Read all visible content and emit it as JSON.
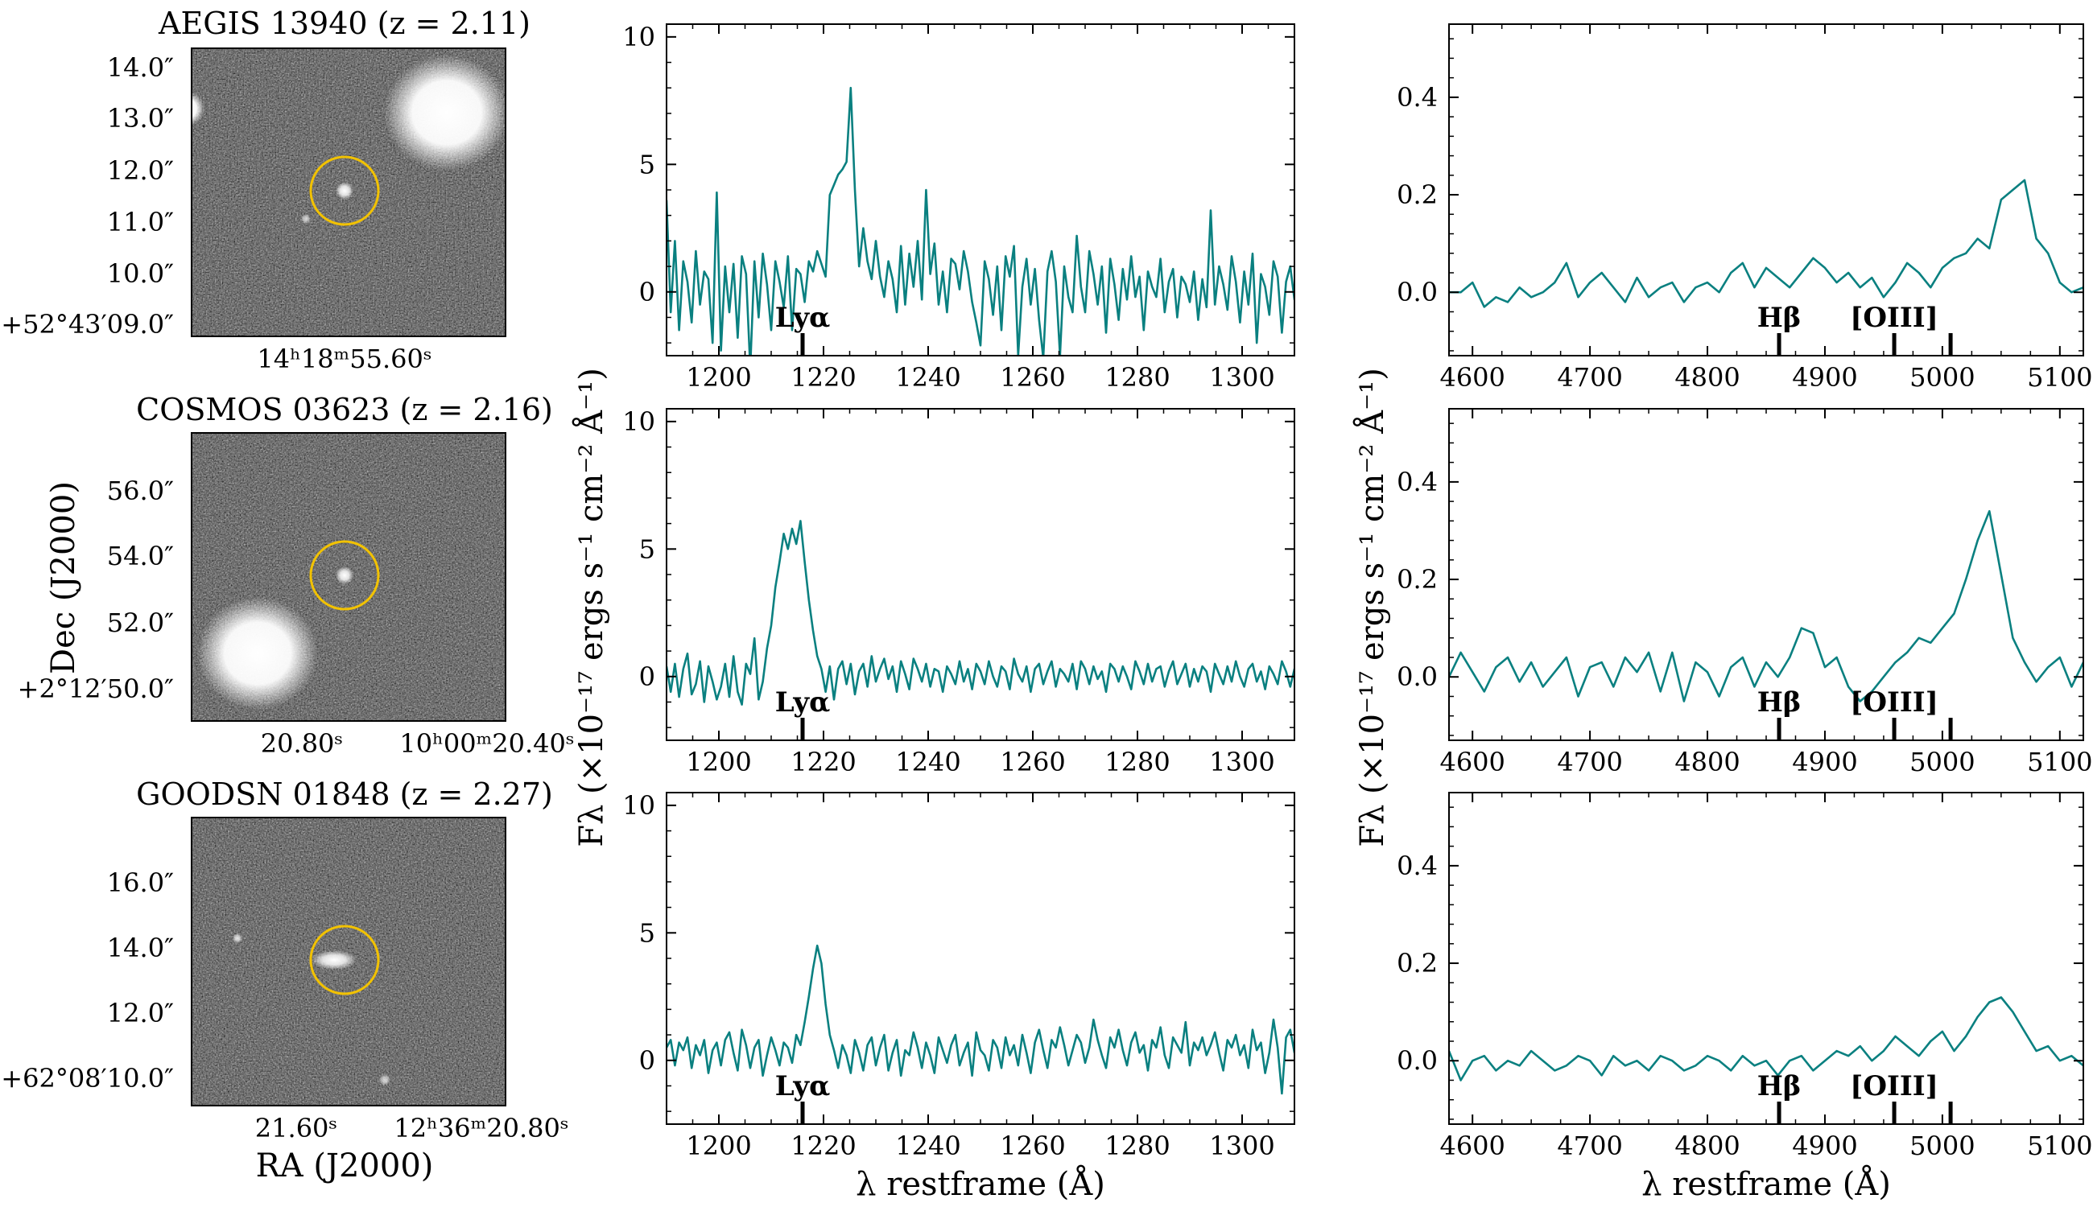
{
  "colors": {
    "spectrum": "#0a8080",
    "aperture": "#f2c200",
    "axis": "#000000"
  },
  "labels": {
    "cutout_xlabel": "RA (J2000)",
    "cutout_ylabel": "Dec (J2000)",
    "flux_ylabel": "Fλ (×10⁻¹⁷ ergs s⁻¹ cm⁻² Å⁻¹)",
    "uv_xlabel": "λ restframe (Å)",
    "opt_xlabel": "λ restframe (Å)"
  },
  "cutouts": [
    {
      "title": "AEGIS 13940 (z = 2.11)",
      "dec_ticks": [
        "14.0″",
        "13.0″",
        "12.0″",
        "11.0″",
        "10.0″",
        "+52°43′09.0″"
      ],
      "ra_ticks": [
        "14ʰ18ᵐ55.60ˢ"
      ]
    },
    {
      "title": "COSMOS 03623 (z = 2.16)",
      "dec_ticks": [
        "56.0″",
        "54.0″",
        "52.0″",
        "+2°12′50.0″"
      ],
      "ra_ticks": [
        "20.80ˢ",
        "10ʰ00ᵐ20.40ˢ"
      ]
    },
    {
      "title": "GOODSN 01848 (z = 2.27)",
      "dec_ticks": [
        "16.0″",
        "14.0″",
        "12.0″",
        "+62°08′10.0″"
      ],
      "ra_ticks": [
        "21.60ˢ",
        "12ʰ36ᵐ20.80ˢ"
      ]
    }
  ],
  "chart_data": [
    {
      "type": "line",
      "panel": "UV row 1",
      "xlabel": "",
      "ylabel": "",
      "xlim": [
        1190,
        1310
      ],
      "ylim": [
        -2.5,
        10.5
      ],
      "xticks": [
        1200,
        1220,
        1240,
        1260,
        1280,
        1300
      ],
      "yticks": [
        0,
        5,
        10
      ],
      "lines": [
        {
          "name": "Lyα",
          "x": 1216
        }
      ],
      "series": [
        {
          "name": "spectrum",
          "x0": 1190,
          "dx": 0.8,
          "values": [
            3.6,
            -0.8,
            2.0,
            -1.5,
            1.2,
            0.4,
            -1.2,
            1.6,
            -0.5,
            0.8,
            0.5,
            -2.0,
            3.9,
            -2.3,
            1.0,
            -0.8,
            1.1,
            -1.8,
            1.4,
            0.7,
            -3.0,
            1.2,
            -1.0,
            1.5,
            0.3,
            -1.5,
            1.2,
            0.4,
            -0.6,
            1.4,
            -1.5,
            0.9,
            0.7,
            -0.4,
            1.2,
            0.8,
            1.6,
            1.1,
            0.6,
            3.8,
            4.2,
            4.6,
            4.8,
            5.1,
            8.0,
            4.0,
            1.0,
            2.5,
            1.2,
            0.5,
            2.0,
            0.6,
            -0.2,
            1.2,
            0.5,
            -0.8,
            1.8,
            -0.5,
            1.5,
            0.2,
            2.0,
            -0.3,
            4.0,
            0.7,
            1.9,
            -0.5,
            0.8,
            -0.8,
            1.3,
            1.1,
            0.1,
            1.6,
            0.8,
            -0.4,
            -1.2,
            -2.1,
            1.2,
            0.5,
            -0.9,
            1.0,
            -1.5,
            1.4,
            0.6,
            1.8,
            -2.5,
            0.2,
            1.3,
            -0.5,
            0.9,
            -1.1,
            -2.6,
            0.8,
            1.6,
            0.4,
            -2.5,
            1.0,
            -0.2,
            -0.8,
            2.2,
            0.2,
            -0.8,
            1.6,
            0.7,
            -0.5,
            1.0,
            -1.6,
            1.3,
            0.3,
            -1.1,
            0.9,
            -0.3,
            1.4,
            -0.2,
            0.6,
            -1.5,
            0.8,
            0.2,
            -0.2,
            1.3,
            -0.8,
            0.4,
            0.9,
            -1.0,
            0.6,
            0.3,
            -0.4,
            0.8,
            -1.1,
            0.5,
            -0.6,
            3.2,
            -0.5,
            1.0,
            0.3,
            -0.7,
            1.4,
            0.4,
            -1.2,
            0.8,
            -0.5,
            1.5,
            -2.0,
            0.7,
            0.2,
            -0.9,
            1.2,
            0.6,
            -1.6,
            0.4,
            1.0,
            -0.3,
            1.6,
            -2.2,
            0.6,
            1.8,
            0.3,
            1.6,
            -0.2,
            2.4,
            1.1,
            2.1
          ]
        }
      ]
    },
    {
      "type": "line",
      "panel": "UV row 2",
      "xlabel": "",
      "ylabel": "",
      "xlim": [
        1190,
        1310
      ],
      "ylim": [
        -2.5,
        10.5
      ],
      "xticks": [
        1200,
        1220,
        1240,
        1260,
        1280,
        1300
      ],
      "yticks": [
        0,
        5,
        10
      ],
      "lines": [
        {
          "name": "Lyα",
          "x": 1216
        }
      ],
      "series": [
        {
          "name": "spectrum",
          "x0": 1190,
          "dx": 0.8,
          "values": [
            0.4,
            -0.6,
            0.5,
            -0.8,
            0.3,
            0.9,
            -0.7,
            -0.3,
            0.6,
            -1.0,
            0.4,
            -0.2,
            -0.9,
            -0.4,
            0.5,
            -0.8,
            0.8,
            -0.6,
            -1.1,
            0.5,
            0.1,
            1.5,
            -0.9,
            -0.2,
            1.1,
            2.0,
            3.5,
            4.5,
            5.6,
            5.0,
            5.8,
            5.2,
            6.1,
            4.5,
            3.0,
            1.8,
            0.8,
            0.3,
            -0.6,
            0.4,
            -0.9,
            0.3,
            0.6,
            -0.3,
            0.5,
            -0.7,
            0.2,
            0.5,
            -0.4,
            0.8,
            -0.2,
            0.3,
            0.7,
            -0.1,
            0.4,
            -0.6,
            0.6,
            0.1,
            -0.5,
            0.7,
            0.3,
            -0.2,
            0.5,
            -0.4,
            0.3,
            0.2,
            -0.6,
            0.4,
            0.1,
            -0.3,
            0.6,
            -0.2,
            0.3,
            -0.5,
            0.5,
            0.2,
            -0.3,
            0.6,
            0.0,
            -0.4,
            0.4,
            0.2,
            -0.5,
            0.7,
            0.1,
            -0.2,
            0.4,
            -0.6,
            0.3,
            0.5,
            -0.3,
            0.2,
            0.6,
            -0.4,
            0.3,
            0.1,
            -0.2,
            0.5,
            -0.5,
            0.6,
            0.3,
            -0.3,
            0.4,
            -0.1,
            0.2,
            -0.6,
            0.5,
            0.3,
            -0.2,
            0.4,
            0.0,
            -0.5,
            0.6,
            0.2,
            -0.3,
            0.5,
            -0.2,
            0.3,
            0.4,
            -0.4,
            0.2,
            0.6,
            -0.3,
            0.1,
            0.5,
            -0.4,
            0.3,
            -0.2,
            0.4,
            0.2,
            -0.6,
            0.5,
            0.1,
            -0.3,
            0.4,
            -0.2,
            0.6,
            0.0,
            -0.4,
            0.3,
            0.5,
            -0.2,
            0.2,
            -0.5,
            0.4,
            0.1,
            -0.3,
            0.6,
            0.2,
            -0.4,
            0.3,
            0.0,
            -0.2,
            0.5,
            -0.6,
            0.3,
            0.4,
            -0.1,
            0.2
          ]
        }
      ]
    },
    {
      "type": "line",
      "panel": "UV row 3",
      "xlabel": "λ restframe (Å)",
      "ylabel": "",
      "xlim": [
        1190,
        1310
      ],
      "ylim": [
        -2.5,
        10.5
      ],
      "xticks": [
        1200,
        1220,
        1240,
        1260,
        1280,
        1300
      ],
      "yticks": [
        0,
        5,
        10
      ],
      "lines": [
        {
          "name": "Lyα",
          "x": 1216
        }
      ],
      "series": [
        {
          "name": "spectrum",
          "x0": 1190,
          "dx": 0.8,
          "values": [
            0.5,
            0.8,
            -0.2,
            0.7,
            0.4,
            0.9,
            -0.3,
            0.6,
            0.2,
            0.8,
            -0.5,
            0.4,
            0.7,
            -0.2,
            0.8,
            1.1,
            0.3,
            -0.4,
            1.2,
            0.6,
            -0.3,
            0.5,
            0.8,
            -0.6,
            0.2,
            0.9,
            0.4,
            -0.2,
            0.7,
            0.5,
            -0.1,
            1.0,
            0.6,
            1.5,
            2.5,
            3.6,
            4.5,
            3.8,
            2.2,
            1.0,
            0.4,
            -0.3,
            0.6,
            0.2,
            -0.5,
            0.8,
            0.3,
            -0.4,
            0.6,
            0.9,
            -0.2,
            0.5,
            1.0,
            -0.4,
            0.3,
            0.8,
            -0.6,
            0.4,
            0.2,
            1.1,
            0.5,
            -0.3,
            0.7,
            0.2,
            -0.5,
            0.9,
            0.4,
            -0.1,
            0.6,
            1.0,
            -0.2,
            0.3,
            0.7,
            -0.6,
            1.1,
            0.4,
            0.2,
            -0.4,
            0.8,
            0.5,
            -0.3,
            0.9,
            0.2,
            0.6,
            -0.2,
            1.0,
            0.3,
            -0.5,
            0.7,
            1.2,
            0.4,
            -0.3,
            0.8,
            0.5,
            1.3,
            0.6,
            -0.2,
            0.4,
            1.0,
            0.7,
            -0.1,
            0.5,
            1.6,
            0.8,
            0.2,
            -0.3,
            0.9,
            0.5,
            1.2,
            0.4,
            -0.2,
            0.7,
            1.1,
            0.3,
            0.6,
            -0.4,
            0.8,
            0.5,
            1.3,
            0.2,
            -0.3,
            0.9,
            0.6,
            0.3,
            1.5,
            -0.2,
            0.7,
            0.4,
            0.9,
            0.2,
            0.6,
            1.1,
            0.3,
            -0.4,
            0.8,
            0.5,
            1.0,
            0.2,
            0.6,
            -0.3,
            1.2,
            0.4,
            0.7,
            -0.5,
            0.3,
            1.6,
            0.5,
            -1.3,
            0.9,
            1.2,
            0.3,
            0.6,
            -0.4,
            1.0,
            0.4,
            0.7,
            -0.2
          ]
        }
      ]
    },
    {
      "type": "line",
      "panel": "Optical row 1",
      "xlabel": "",
      "ylabel": "",
      "xlim": [
        4580,
        5120
      ],
      "ylim": [
        -0.13,
        0.55
      ],
      "xticks": [
        4600,
        4700,
        4800,
        4900,
        5000,
        5100
      ],
      "yticks": [
        0.0,
        0.2,
        0.4
      ],
      "lines": [
        {
          "name": "Hβ",
          "x": 4861
        },
        {
          "name": "[OIII]",
          "x": 4959
        },
        {
          "name": "",
          "x": 5007
        }
      ],
      "series": [
        {
          "name": "spectrum",
          "x0": 4580,
          "dx": 10,
          "values": [
            0.0,
            0.0,
            0.02,
            -0.03,
            -0.01,
            -0.02,
            0.01,
            -0.01,
            0.0,
            0.02,
            0.06,
            -0.01,
            0.02,
            0.04,
            0.01,
            -0.02,
            0.03,
            -0.01,
            0.01,
            0.02,
            -0.02,
            0.01,
            0.02,
            0.0,
            0.04,
            0.06,
            0.01,
            0.05,
            0.03,
            0.01,
            0.04,
            0.07,
            0.05,
            0.02,
            0.04,
            0.01,
            0.03,
            -0.01,
            0.02,
            0.06,
            0.04,
            0.01,
            0.05,
            0.07,
            0.08,
            0.11,
            0.09,
            0.19,
            0.21,
            0.23,
            0.11,
            0.08,
            0.02,
            0.0,
            0.01,
            0.01,
            -0.02,
            0.0,
            0.01
          ]
        }
      ]
    },
    {
      "type": "line",
      "panel": "Optical row 2",
      "xlabel": "",
      "ylabel": "",
      "xlim": [
        4580,
        5120
      ],
      "ylim": [
        -0.13,
        0.55
      ],
      "xticks": [
        4600,
        4700,
        4800,
        4900,
        5000,
        5100
      ],
      "yticks": [
        0.0,
        0.2,
        0.4
      ],
      "lines": [
        {
          "name": "Hβ",
          "x": 4861
        },
        {
          "name": "[OIII]",
          "x": 4959
        },
        {
          "name": "",
          "x": 5007
        }
      ],
      "series": [
        {
          "name": "spectrum",
          "x0": 4580,
          "dx": 10,
          "values": [
            0.0,
            0.05,
            0.01,
            -0.03,
            0.02,
            0.04,
            -0.01,
            0.03,
            -0.02,
            0.01,
            0.04,
            -0.04,
            0.02,
            0.03,
            -0.02,
            0.04,
            0.01,
            0.05,
            -0.03,
            0.05,
            -0.05,
            0.03,
            0.01,
            -0.04,
            0.02,
            0.04,
            -0.02,
            0.03,
            0.0,
            0.04,
            0.1,
            0.09,
            0.02,
            0.04,
            -0.02,
            -0.05,
            -0.03,
            0.0,
            0.03,
            0.05,
            0.08,
            0.07,
            0.1,
            0.13,
            0.2,
            0.28,
            0.34,
            0.21,
            0.08,
            0.03,
            -0.01,
            0.02,
            0.04,
            -0.02,
            0.03,
            0.01,
            -0.05,
            0.02,
            0.0
          ]
        }
      ]
    },
    {
      "type": "line",
      "panel": "Optical row 3",
      "xlabel": "λ restframe (Å)",
      "ylabel": "",
      "xlim": [
        4580,
        5120
      ],
      "ylim": [
        -0.13,
        0.55
      ],
      "xticks": [
        4600,
        4700,
        4800,
        4900,
        5000,
        5100
      ],
      "yticks": [
        0.0,
        0.2,
        0.4
      ],
      "lines": [
        {
          "name": "Hβ",
          "x": 4861
        },
        {
          "name": "[OIII]",
          "x": 4959
        },
        {
          "name": "",
          "x": 5007
        }
      ],
      "series": [
        {
          "name": "spectrum",
          "x0": 4580,
          "dx": 10,
          "values": [
            0.02,
            -0.04,
            0.0,
            0.01,
            -0.02,
            0.0,
            -0.01,
            0.02,
            0.0,
            -0.02,
            -0.01,
            0.01,
            0.0,
            -0.03,
            0.01,
            -0.01,
            0.0,
            -0.02,
            0.01,
            0.0,
            -0.02,
            -0.01,
            0.01,
            0.0,
            -0.02,
            0.01,
            -0.01,
            0.0,
            -0.03,
            0.0,
            0.01,
            -0.02,
            0.0,
            0.02,
            0.01,
            0.03,
            0.0,
            0.02,
            0.05,
            0.03,
            0.01,
            0.04,
            0.06,
            0.02,
            0.05,
            0.09,
            0.12,
            0.13,
            0.1,
            0.06,
            0.02,
            0.03,
            0.0,
            0.01,
            -0.01,
            0.0,
            0.02,
            -0.01,
            0.0
          ]
        }
      ]
    }
  ]
}
